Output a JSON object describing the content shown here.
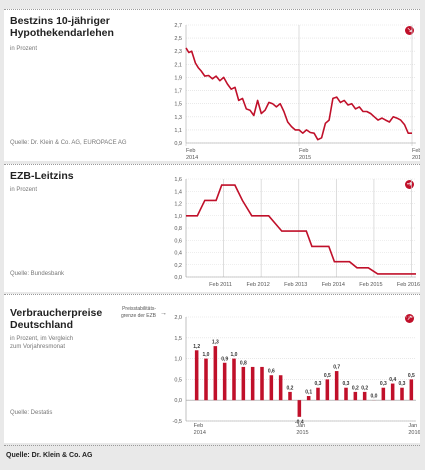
{
  "panels": [
    {
      "title": "Bestzins 10-jähriger\nHypothekendarlehen",
      "subtitle": "in Prozent",
      "source": "Quelle: Dr. Klein & Co. AG, EUROPACE AG",
      "trend_icon": "arrow-down-right-icon",
      "trend_glyph": "↘"
    },
    {
      "title": "EZB-Leitzins",
      "subtitle": "in Prozent",
      "source": "Quelle: Bundesbank",
      "trend_icon": "arrow-right-icon",
      "trend_glyph": "➔"
    },
    {
      "title": "Verbraucherpreise\nDeutschland",
      "subtitle": "in Prozent, im Vergleich\nzum Vorjahresmonat",
      "source": "Quelle: Destatis",
      "trend_icon": "arrow-up-right-icon",
      "trend_glyph": "↗"
    }
  ],
  "footer": "Quelle: Dr. Klein & Co. AG",
  "colors": {
    "series": "#c0102a",
    "grid": "#dcdcdc",
    "axis": "#999999",
    "text": "#555555"
  },
  "chart_data": [
    {
      "type": "line",
      "yticks": [
        "2,7",
        "2,5",
        "2,3",
        "2,1",
        "1,9",
        "1,7",
        "1,5",
        "1,3",
        "1,1",
        "0,9"
      ],
      "ylim": [
        0.9,
        2.7
      ],
      "xticks": [
        {
          "label": "Feb\n2014",
          "x": 0
        },
        {
          "label": "Feb\n2015",
          "x": 12
        },
        {
          "label": "Feb\n2016",
          "x": 24
        }
      ],
      "xlim": [
        0,
        24
      ],
      "series": [
        {
          "x": [
            0,
            0.3,
            0.6,
            1,
            1.3,
            1.6,
            2,
            2.4,
            2.8,
            3.2,
            3.6,
            4,
            4.4,
            4.8,
            5.2,
            5.6,
            6,
            6.4,
            6.8,
            7.2,
            7.6,
            8,
            8.4,
            8.8,
            9.2,
            9.6,
            10,
            10.4,
            10.8,
            11.2,
            11.6,
            12,
            12.4,
            12.8,
            13.2,
            13.6,
            14,
            14.4,
            14.8,
            15.2,
            15.6,
            16,
            16.4,
            16.8,
            17.2,
            17.6,
            18,
            18.4,
            18.8,
            19.2,
            19.6,
            20,
            20.4,
            20.8,
            21.2,
            21.6,
            22,
            22.4,
            22.8,
            23.2,
            23.6,
            24
          ],
          "y": [
            2.35,
            2.28,
            2.3,
            2.12,
            2.05,
            2.0,
            1.92,
            1.93,
            1.88,
            1.92,
            1.85,
            1.9,
            1.8,
            1.72,
            1.75,
            1.55,
            1.58,
            1.42,
            1.4,
            1.32,
            1.55,
            1.35,
            1.4,
            1.52,
            1.5,
            1.45,
            1.5,
            1.38,
            1.22,
            1.15,
            1.1,
            1.1,
            1.05,
            1.1,
            1.06,
            1.05,
            0.95,
            0.98,
            1.2,
            1.25,
            1.58,
            1.6,
            1.52,
            1.55,
            1.48,
            1.5,
            1.42,
            1.45,
            1.38,
            1.38,
            1.35,
            1.3,
            1.25,
            1.28,
            1.25,
            1.22,
            1.3,
            1.28,
            1.25,
            1.18,
            1.05,
            1.05
          ]
        }
      ]
    },
    {
      "type": "line",
      "yticks": [
        "1,6",
        "1,4",
        "1,2",
        "1,0",
        "0,8",
        "0,6",
        "0,4",
        "0,2",
        "0,0"
      ],
      "ylim": [
        0,
        1.6
      ],
      "xticks": [
        {
          "label": "Feb 2011",
          "x": 1
        },
        {
          "label": "Feb 2012",
          "x": 2
        },
        {
          "label": "Feb 2013",
          "x": 3
        },
        {
          "label": "Feb 2014",
          "x": 4
        },
        {
          "label": "Feb 2015",
          "x": 5
        },
        {
          "label": "Feb 2016",
          "x": 6
        }
      ],
      "xlim": [
        0,
        6.12
      ],
      "series": [
        {
          "x": [
            0,
            0.3,
            0.5,
            0.8,
            0.95,
            1.3,
            1.5,
            1.75,
            2.0,
            2.2,
            2.55,
            3.2,
            3.35,
            3.8,
            3.95,
            4.35,
            4.55,
            4.85,
            5.1,
            6.12
          ],
          "y": [
            1.0,
            1.0,
            1.25,
            1.25,
            1.5,
            1.5,
            1.25,
            1.0,
            1.0,
            1.0,
            0.75,
            0.75,
            0.5,
            0.5,
            0.25,
            0.25,
            0.15,
            0.15,
            0.05,
            0.05
          ]
        }
      ]
    },
    {
      "type": "bar",
      "yticks": [
        "2,0",
        "1,5",
        "1,0",
        "0,5",
        "0,0",
        "-0,5"
      ],
      "ylim": [
        -0.5,
        2.0
      ],
      "reference_label": "Preisstabilitäts-\ngrenze der EZB",
      "reference_value": 2.0,
      "categories": [
        "Feb 2014",
        "",
        "",
        "",
        "",
        "",
        "",
        "",
        "",
        "",
        "",
        "Jan 2015",
        "",
        "",
        "",
        "",
        "",
        "",
        "",
        "",
        "",
        "",
        "",
        "Jan 2016"
      ],
      "xtick_labels": [
        {
          "label": "Feb\n2014",
          "index": 0
        },
        {
          "label": "Jan\n2015",
          "index": 11
        },
        {
          "label": "Jan\n2016",
          "index": 23
        }
      ],
      "values": [
        1.2,
        1.0,
        1.3,
        0.9,
        1.0,
        0.8,
        0.8,
        0.8,
        0.6,
        0.6,
        0.2,
        -0.4,
        0.1,
        0.3,
        0.5,
        0.7,
        0.3,
        0.2,
        0.2,
        0.0,
        0.3,
        0.4,
        0.3,
        0.5
      ],
      "value_labels": [
        "1,2",
        "1,0",
        "1,3",
        "0,9",
        "1,0",
        "0,8",
        "",
        "",
        "0,6",
        "",
        "0,2",
        "-0,4",
        "0,1",
        "0,3",
        "0,5",
        "0,7",
        "0,3",
        "0,2",
        "0,2",
        "0,0",
        "0,3",
        "0,4",
        "0,3",
        "0,5"
      ]
    }
  ]
}
